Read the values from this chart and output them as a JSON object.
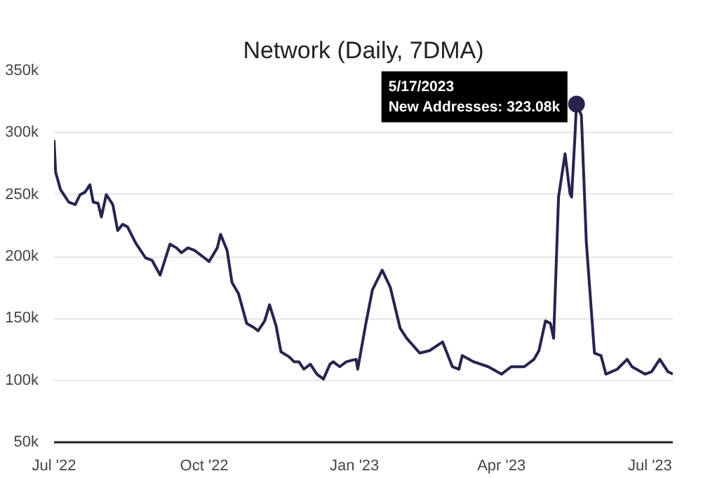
{
  "chart_data": {
    "type": "line",
    "title": "Network (Daily, 7DMA)",
    "x": [
      "2022-07-01",
      "2022-07-02",
      "2022-07-05",
      "2022-07-10",
      "2022-07-14",
      "2022-07-17",
      "2022-07-20",
      "2022-07-23",
      "2022-07-25",
      "2022-07-28",
      "2022-07-30",
      "2022-08-02",
      "2022-08-06",
      "2022-08-09",
      "2022-08-12",
      "2022-08-15",
      "2022-08-20",
      "2022-08-26",
      "2022-08-30",
      "2022-09-04",
      "2022-09-10",
      "2022-09-14",
      "2022-09-17",
      "2022-09-21",
      "2022-09-25",
      "2022-10-01",
      "2022-10-04",
      "2022-10-09",
      "2022-10-11",
      "2022-10-15",
      "2022-10-18",
      "2022-10-22",
      "2022-10-27",
      "2022-10-31",
      "2022-11-03",
      "2022-11-07",
      "2022-11-10",
      "2022-11-14",
      "2022-11-17",
      "2022-11-22",
      "2022-11-25",
      "2022-11-28",
      "2022-12-01",
      "2022-12-05",
      "2022-12-09",
      "2022-12-13",
      "2022-12-17",
      "2022-12-19",
      "2022-12-23",
      "2022-12-27",
      "2023-01-02",
      "2023-01-03",
      "2023-01-08",
      "2023-01-12",
      "2023-01-18",
      "2023-01-23",
      "2023-01-29",
      "2023-02-02",
      "2023-02-10",
      "2023-02-16",
      "2023-02-24",
      "2023-03-02",
      "2023-03-06",
      "2023-03-08",
      "2023-03-15",
      "2023-03-24",
      "2023-04-01",
      "2023-04-07",
      "2023-04-15",
      "2023-04-21",
      "2023-04-24",
      "2023-04-28",
      "2023-05-01",
      "2023-05-03",
      "2023-05-06",
      "2023-05-10",
      "2023-05-13",
      "2023-05-14",
      "2023-05-16",
      "2023-05-17",
      "2023-05-20",
      "2023-05-23",
      "2023-05-28",
      "2023-06-01",
      "2023-06-04",
      "2023-06-11",
      "2023-06-17",
      "2023-06-20",
      "2023-06-28",
      "2023-07-02",
      "2023-07-07",
      "2023-07-12",
      "2023-07-15"
    ],
    "series": [
      {
        "color": "#26244f",
        "values": [
          294000,
          268000,
          254000,
          244000,
          242000,
          250000,
          252000,
          258000,
          244000,
          243000,
          232000,
          250000,
          242000,
          221000,
          226000,
          224000,
          211000,
          199000,
          197000,
          185000,
          210000,
          207000,
          203000,
          207000,
          205000,
          199000,
          196000,
          207000,
          218000,
          205000,
          179000,
          170000,
          146000,
          143000,
          140000,
          148000,
          161000,
          144000,
          123000,
          119000,
          115000,
          115000,
          109000,
          113000,
          105000,
          101000,
          113000,
          115000,
          111000,
          115000,
          117000,
          109000,
          146000,
          173000,
          189000,
          175000,
          142000,
          134000,
          122000,
          124000,
          131000,
          111000,
          109000,
          120000,
          115000,
          111000,
          105000,
          111000,
          111000,
          117000,
          124000,
          148000,
          146000,
          134000,
          248000,
          283000,
          251000,
          248000,
          296000,
          323080,
          314000,
          212000,
          122000,
          120000,
          105000,
          109000,
          117000,
          111000,
          105000,
          107000,
          117000,
          107000,
          105000
        ]
      }
    ],
    "xlim": [
      "2022-07-01",
      "2023-07-15"
    ],
    "xticks": [
      {
        "value": "2022-07-01",
        "label": "Jul '22"
      },
      {
        "value": "2022-10-01",
        "label": "Oct '22"
      },
      {
        "value": "2023-01-01",
        "label": "Jan '23"
      },
      {
        "value": "2023-04-01",
        "label": "Apr '23"
      },
      {
        "value": "2023-07-01",
        "label": "Jul '23"
      }
    ],
    "ylim": [
      50000,
      350000
    ],
    "yticks": [
      {
        "value": 50000,
        "label": "50k"
      },
      {
        "value": 100000,
        "label": "100k"
      },
      {
        "value": 150000,
        "label": "150k"
      },
      {
        "value": 200000,
        "label": "200k"
      },
      {
        "value": 250000,
        "label": "250k"
      },
      {
        "value": 300000,
        "label": "300k"
      },
      {
        "value": 350000,
        "label": "350k"
      }
    ],
    "grid": "y",
    "annotations": [
      {
        "text": "5/17/2023\nNew Addresses: 323.08k",
        "x": "2023-05-17",
        "y": 323080
      }
    ]
  }
}
